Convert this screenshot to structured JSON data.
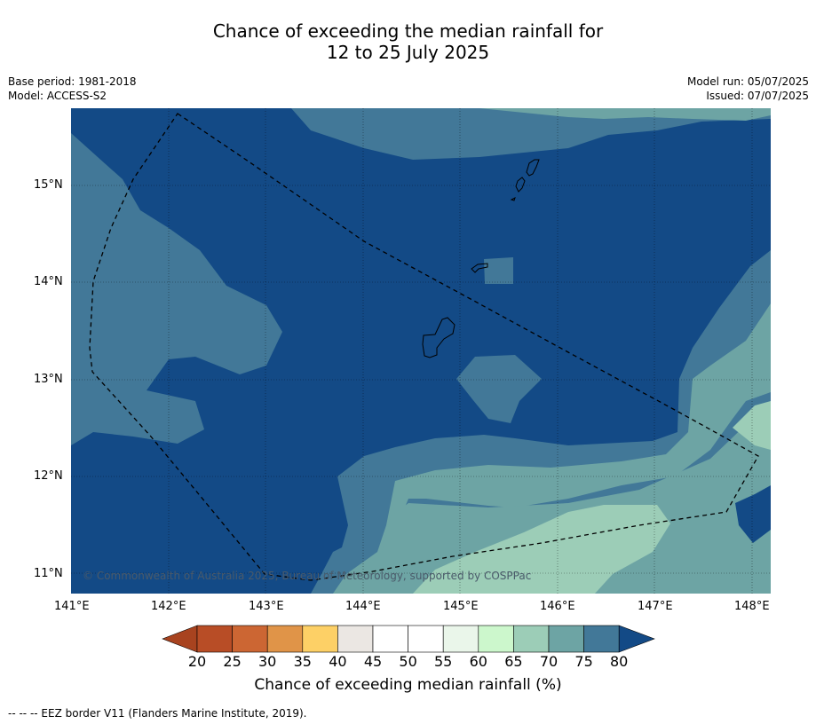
{
  "title": {
    "line1": "Chance of exceeding the median rainfall for",
    "line2": "12 to 25 July 2025"
  },
  "meta": {
    "base_period": "Base period: 1981-2018",
    "model": "Model: ACCESS-S2",
    "model_run": "Model run: 05/07/2025",
    "issued": "Issued: 07/07/2025"
  },
  "map": {
    "copyright": "© Commonwealth of Australia 2025, Bureau of Meteorology, supported by COSPPac",
    "lon_labels": [
      "141°E",
      "142°E",
      "143°E",
      "144°E",
      "145°E",
      "146°E",
      "147°E",
      "148°E"
    ],
    "lat_labels": [
      "15°N",
      "14°N",
      "13°N",
      "12°N",
      "11°N"
    ]
  },
  "colorbar": {
    "title": "Chance of exceeding median rainfall (%)",
    "labels": [
      "20",
      "25",
      "30",
      "35",
      "40",
      "45",
      "50",
      "55",
      "60",
      "65",
      "70",
      "75",
      "80"
    ],
    "colors": [
      "#a8431f",
      "#b84d26",
      "#cc6633",
      "#e09448",
      "#fdd066",
      "#ebe7e3",
      "#ffffff",
      "#ffffff",
      "#eaf6ea",
      "#ccf7cc",
      "#9ccdb7",
      "#6da4a4",
      "#427898",
      "#134a86"
    ]
  },
  "footnote": "--  --  -- EEZ border V11 (Flanders Marine Institute, 2019)."
}
